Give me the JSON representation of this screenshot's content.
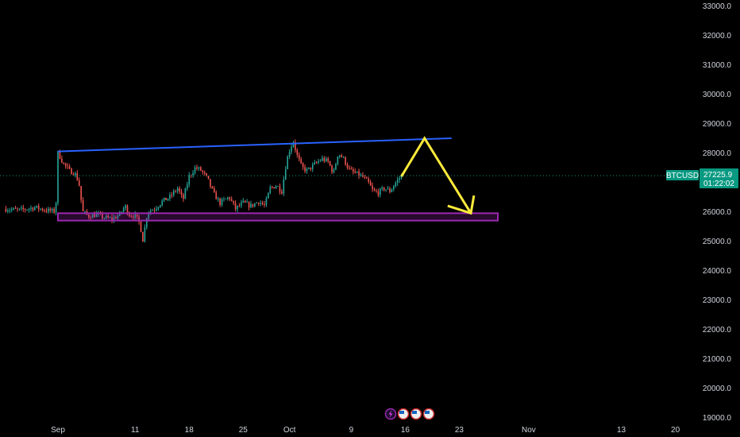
{
  "chart_data": {
    "type": "candlestick",
    "symbol": "BTCUSD",
    "last_price": "27225.9",
    "countdown": "01:22:02",
    "ylim": [
      18800,
      33200
    ],
    "y_ticks": [
      "33000.0",
      "32000.0",
      "31000.0",
      "30000.0",
      "29000.0",
      "28000.0",
      "27000.0",
      "26000.0",
      "25000.0",
      "24000.0",
      "23000.0",
      "22000.0",
      "21000.0",
      "20000.0",
      "19000.0"
    ],
    "x_ticks": [
      {
        "label": "Sep",
        "day": 0
      },
      {
        "label": "11",
        "day": 10
      },
      {
        "label": "18",
        "day": 17
      },
      {
        "label": "25",
        "day": 24
      },
      {
        "label": "Oct",
        "day": 30
      },
      {
        "label": "9",
        "day": 38
      },
      {
        "label": "16",
        "day": 45
      },
      {
        "label": "23",
        "day": 52
      },
      {
        "label": "Nov",
        "day": 61
      },
      {
        "label": "13",
        "day": 73
      },
      {
        "label": "20",
        "day": 80
      }
    ],
    "xlim_days": [
      -7,
      86
    ],
    "price_path": [
      [
        -7,
        26100
      ],
      [
        -5,
        26050
      ],
      [
        -3,
        26150
      ],
      [
        -1.5,
        26050
      ],
      [
        -0.3,
        26000
      ],
      [
        0,
        28000
      ],
      [
        0.8,
        27600
      ],
      [
        1.5,
        27400
      ],
      [
        2.2,
        27300
      ],
      [
        2.7,
        27000
      ],
      [
        3.2,
        26000
      ],
      [
        4,
        25850
      ],
      [
        5,
        25900
      ],
      [
        6,
        25800
      ],
      [
        7,
        25750
      ],
      [
        8,
        25900
      ],
      [
        8.7,
        26200
      ],
      [
        9.2,
        25900
      ],
      [
        10,
        25850
      ],
      [
        10.6,
        25600
      ],
      [
        11,
        25050
      ],
      [
        11.6,
        26000
      ],
      [
        12.5,
        26100
      ],
      [
        13.5,
        26350
      ],
      [
        14.5,
        26500
      ],
      [
        15.5,
        26800
      ],
      [
        16.2,
        26400
      ],
      [
        17,
        27200
      ],
      [
        17.8,
        27500
      ],
      [
        18.6,
        27400
      ],
      [
        19.4,
        27100
      ],
      [
        20.2,
        26600
      ],
      [
        21,
        26300
      ],
      [
        22.2,
        26500
      ],
      [
        23,
        26100
      ],
      [
        24,
        26300
      ],
      [
        25,
        26200
      ],
      [
        26,
        26350
      ],
      [
        26.8,
        26200
      ],
      [
        27.5,
        26800
      ],
      [
        28.3,
        26900
      ],
      [
        29,
        26700
      ],
      [
        29.6,
        27700
      ],
      [
        30,
        28100
      ],
      [
        30.5,
        28400
      ],
      [
        31,
        27900
      ],
      [
        31.6,
        27500
      ],
      [
        32.3,
        27400
      ],
      [
        33.2,
        27600
      ],
      [
        34.2,
        27800
      ],
      [
        35,
        27700
      ],
      [
        35.7,
        27300
      ],
      [
        36.3,
        28000
      ],
      [
        37,
        27800
      ],
      [
        37.8,
        27400
      ],
      [
        38.6,
        27300
      ],
      [
        39.4,
        27200
      ],
      [
        40.2,
        27000
      ],
      [
        40.8,
        26700
      ],
      [
        41.5,
        26650
      ],
      [
        42.3,
        26800
      ],
      [
        43,
        26700
      ],
      [
        43.8,
        27000
      ],
      [
        44.5,
        27225.9
      ]
    ],
    "annotations": [
      {
        "type": "trendline",
        "color": "#2962ff",
        "points": [
          [
            0,
            28050
          ],
          [
            51,
            28500
          ]
        ]
      },
      {
        "type": "zone",
        "color": "#9c27b0",
        "x": [
          0,
          57
        ],
        "y": [
          25700,
          25950
        ]
      },
      {
        "type": "arrow",
        "color": "#ffeb3b",
        "points": [
          [
            44.5,
            27200
          ],
          [
            47.5,
            28500
          ],
          [
            53.5,
            25950
          ]
        ],
        "head_tip": [
          53.5,
          25950
        ],
        "head_a": [
          50.5,
          26200
        ],
        "head_b": [
          53.9,
          26550
        ]
      }
    ],
    "colors": {
      "up": "#26a69a",
      "down": "#ef5350",
      "background": "#000000",
      "axis_text": "#d1d4dc",
      "tag": "#089981"
    }
  }
}
